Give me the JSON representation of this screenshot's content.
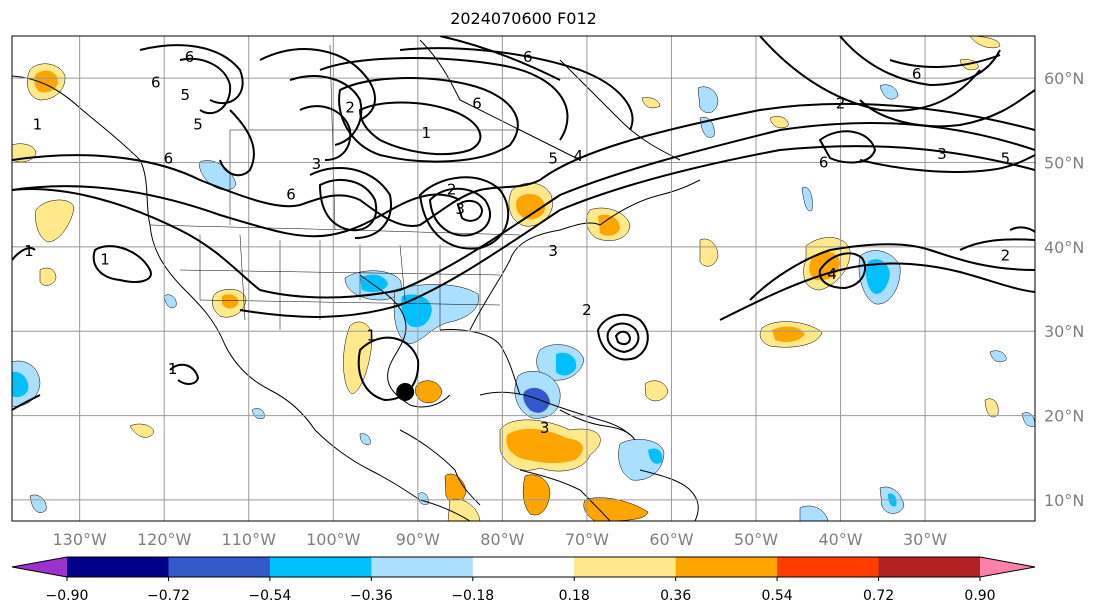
{
  "title": "2024070600 F012",
  "map": {
    "lon_range": [
      -138,
      -17
    ],
    "lat_range": [
      7.5,
      65
    ],
    "lon_ticks": [
      {
        "lon": -130,
        "label": "130°W"
      },
      {
        "lon": -120,
        "label": "120°W"
      },
      {
        "lon": -110,
        "label": "110°W"
      },
      {
        "lon": -100,
        "label": "100°W"
      },
      {
        "lon": -90,
        "label": "90°W"
      },
      {
        "lon": -80,
        "label": "80°W"
      },
      {
        "lon": -70,
        "label": "70°W"
      },
      {
        "lon": -60,
        "label": "60°W"
      },
      {
        "lon": -50,
        "label": "50°W"
      },
      {
        "lon": -40,
        "label": "40°W"
      },
      {
        "lon": -30,
        "label": "30°W"
      }
    ],
    "lat_ticks": [
      {
        "lat": 10,
        "label": "10°N"
      },
      {
        "lat": 20,
        "label": "20°N"
      },
      {
        "lat": 30,
        "label": "30°N"
      },
      {
        "lat": 40,
        "label": "40°N"
      },
      {
        "lat": 50,
        "label": "50°N"
      },
      {
        "lat": 60,
        "label": "60°N"
      }
    ],
    "marker": {
      "lon": -91.5,
      "lat": 22.8,
      "color": "#000000",
      "name": "storm-center-marker"
    },
    "contour_labels": [
      {
        "text": "6",
        "lon": -117,
        "lat": 62.5
      },
      {
        "text": "6",
        "lon": -121,
        "lat": 59.5
      },
      {
        "text": "5",
        "lon": -117.5,
        "lat": 58
      },
      {
        "text": "5",
        "lon": -116,
        "lat": 54.5
      },
      {
        "text": "6",
        "lon": -119.5,
        "lat": 50.5
      },
      {
        "text": "2",
        "lon": -98,
        "lat": 56.5
      },
      {
        "text": "1",
        "lon": -89,
        "lat": 53.5
      },
      {
        "text": "6",
        "lon": -83,
        "lat": 57
      },
      {
        "text": "6",
        "lon": -77,
        "lat": 62.5
      },
      {
        "text": "3",
        "lon": -102,
        "lat": 49.8
      },
      {
        "text": "6",
        "lon": -105,
        "lat": 46.2
      },
      {
        "text": "2",
        "lon": -86,
        "lat": 46.8
      },
      {
        "text": "3",
        "lon": -85,
        "lat": 44.5
      },
      {
        "text": "5",
        "lon": -74,
        "lat": 50.5
      },
      {
        "text": "4",
        "lon": -71,
        "lat": 50.8
      },
      {
        "text": "3",
        "lon": -74,
        "lat": 39.5
      },
      {
        "text": "1",
        "lon": -135,
        "lat": 54.5
      },
      {
        "text": "1",
        "lon": -136,
        "lat": 39.5
      },
      {
        "text": "1",
        "lon": -127,
        "lat": 38.5
      },
      {
        "text": "2",
        "lon": -70,
        "lat": 32.5
      },
      {
        "text": "2",
        "lon": -40,
        "lat": 57
      },
      {
        "text": "6",
        "lon": -31,
        "lat": 60.5
      },
      {
        "text": "3",
        "lon": -28,
        "lat": 51
      },
      {
        "text": "5",
        "lon": -20.5,
        "lat": 50.5
      },
      {
        "text": "6",
        "lon": -42,
        "lat": 50
      },
      {
        "text": "4",
        "lon": -41,
        "lat": 36.8
      },
      {
        "text": "2",
        "lon": -20.5,
        "lat": 39
      },
      {
        "text": "1",
        "lon": -95.5,
        "lat": 29.5
      },
      {
        "text": "1",
        "lon": -119,
        "lat": 25.5
      },
      {
        "text": "3",
        "lon": -75,
        "lat": 18.5
      }
    ]
  },
  "colorbar": {
    "colors": [
      "#9933cc",
      "#000088",
      "#3358cc",
      "#00bfff",
      "#aadfff",
      "#ffffff",
      "#ffe98a",
      "#ffa500",
      "#ff3d00",
      "#b22222",
      "#ff80aa"
    ],
    "boundaries": [
      "−0.90",
      "−0.72",
      "−0.54",
      "−0.36",
      "−0.18",
      "0.18",
      "0.36",
      "0.54",
      "0.72",
      "0.90"
    ]
  }
}
